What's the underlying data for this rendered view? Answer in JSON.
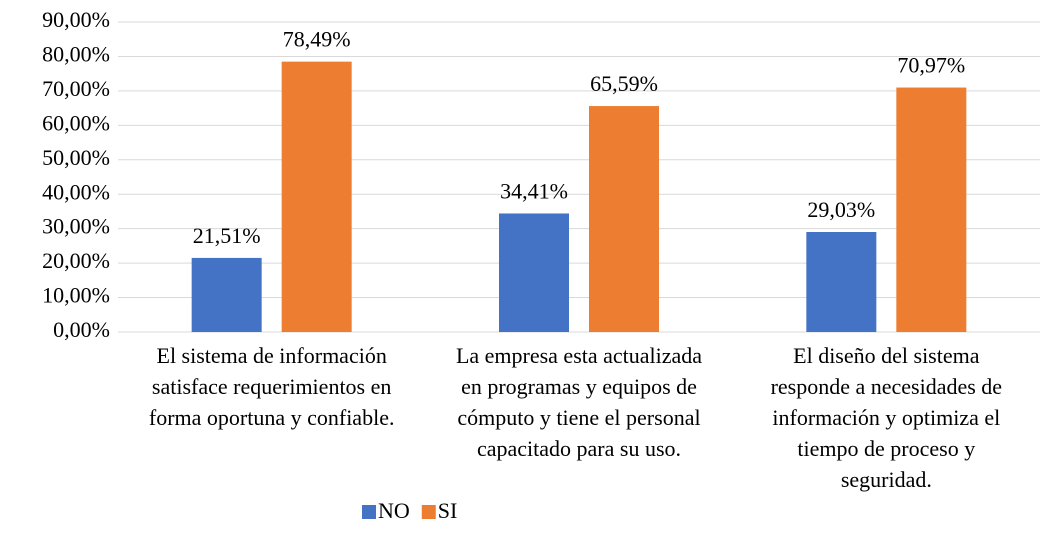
{
  "chart_data": {
    "type": "bar",
    "categories": [
      [
        "El sistema de información",
        "satisface requerimientos en",
        "forma oportuna y confiable."
      ],
      [
        "La empresa esta actualizada",
        "en programas y equipos de",
        "cómputo y tiene el personal",
        "capacitado para su uso."
      ],
      [
        "El diseño del sistema",
        "responde a necesidades de",
        "información y optimiza el",
        "tiempo de proceso y",
        "seguridad."
      ]
    ],
    "series": [
      {
        "name": "NO",
        "color": "#4472c4",
        "values": [
          21.51,
          34.41,
          29.03
        ],
        "value_labels": [
          "21,51%",
          "34,41%",
          "29,03%"
        ]
      },
      {
        "name": "SI",
        "color": "#ed7d31",
        "values": [
          78.49,
          65.59,
          70.97
        ],
        "value_labels": [
          "78,49%",
          "65,59%",
          "70,97%"
        ]
      }
    ],
    "ylim": [
      0,
      90
    ],
    "yticks": [
      {
        "value": 0,
        "label": "0,00%"
      },
      {
        "value": 10,
        "label": "10,00%"
      },
      {
        "value": 20,
        "label": "20,00%"
      },
      {
        "value": 30,
        "label": "30,00%"
      },
      {
        "value": 40,
        "label": "40,00%"
      },
      {
        "value": 50,
        "label": "50,00%"
      },
      {
        "value": 60,
        "label": "60,00%"
      },
      {
        "value": 70,
        "label": "70,00%"
      },
      {
        "value": 80,
        "label": "80,00%"
      },
      {
        "value": 90,
        "label": "90,00%"
      }
    ],
    "grid": true,
    "legend": "bottom"
  }
}
